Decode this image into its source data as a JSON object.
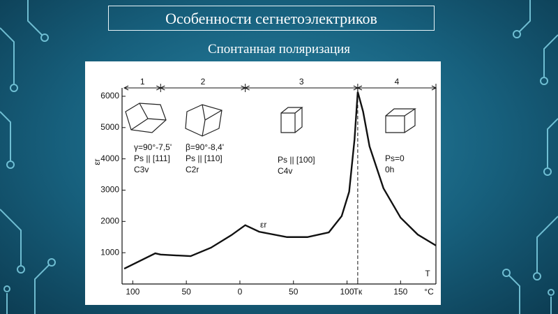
{
  "slide": {
    "title": "Особенности сегнетоэлектриков",
    "subtitle": "Спонтанная поляризация"
  },
  "chart_data": {
    "type": "line",
    "ylabel": "εr",
    "xlabel": "T",
    "xunit": "°C",
    "x": [
      -108,
      -79,
      -74,
      -46,
      -27,
      -8,
      5,
      18,
      44,
      63,
      83,
      95,
      102,
      107,
      110,
      115,
      121,
      134,
      150,
      166,
      183
    ],
    "series": [
      {
        "name": "εr",
        "color": "#111111",
        "values": [
          490,
          980,
          940,
          890,
          1160,
          1560,
          1880,
          1670,
          1500,
          1500,
          1650,
          2170,
          2950,
          4620,
          6140,
          5510,
          4400,
          3060,
          2120,
          1580,
          1230
        ]
      }
    ],
    "xlim": [
      -110,
      183
    ],
    "ylim": [
      0,
      6200
    ],
    "yticks": [
      1000,
      2000,
      3000,
      4000,
      5000,
      6000
    ],
    "xticks": [
      {
        "value": -100,
        "label": "100"
      },
      {
        "value": -50,
        "label": "50"
      },
      0,
      50,
      100,
      {
        "value": 110,
        "label": "Tк"
      },
      150
    ],
    "regions": [
      {
        "label": "1",
        "from": -108,
        "to": -74
      },
      {
        "label": "2",
        "from": -74,
        "to": 5
      },
      {
        "label": "3",
        "from": 5,
        "to": 110
      },
      {
        "label": "4",
        "from": 110,
        "to": 183
      }
    ],
    "annotations": [
      {
        "lines": [
          "γ=90°-7,5'",
          "Ps || [111]",
          "C3v"
        ]
      },
      {
        "lines": [
          "β=90°-8,4'",
          "Ps || [110]",
          "C2r"
        ]
      },
      {
        "lines": [
          "Ps || [100]",
          "C4v"
        ]
      },
      {
        "lines": [
          "Ps=0",
          "0h"
        ]
      }
    ]
  }
}
